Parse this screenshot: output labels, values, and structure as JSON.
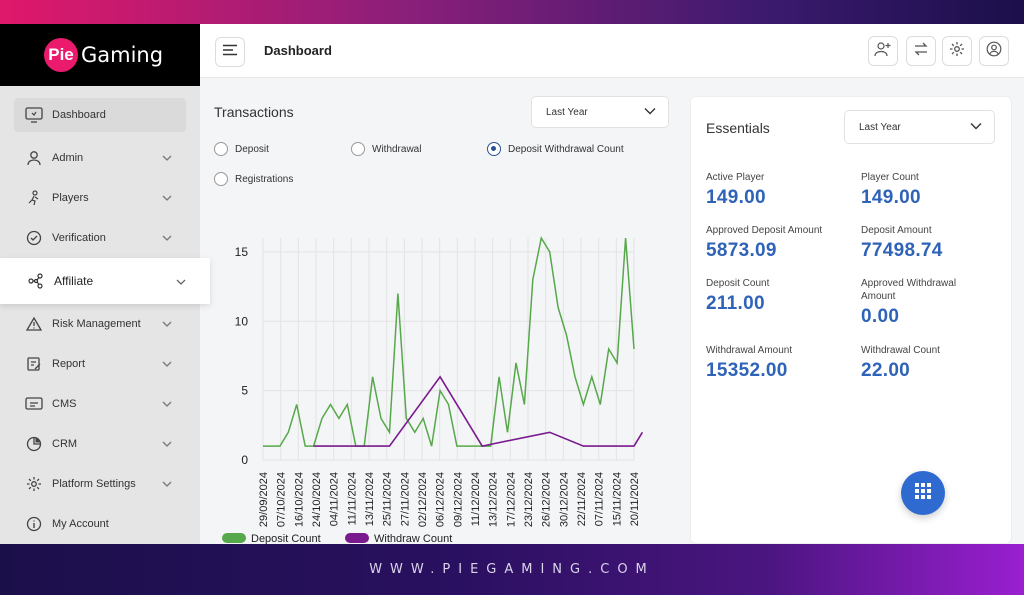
{
  "brand": {
    "logo_mark": "Pie",
    "logo_text": "Gaming",
    "site_url": "WWW.PIEGAMING.COM"
  },
  "colors": {
    "accent": "#2f63b8",
    "brand_pink": "#ea1a6c",
    "deposit": "#57a84a",
    "withdraw": "#7a1a8f"
  },
  "sidebar": {
    "items": [
      {
        "label": "Dashboard",
        "icon": "dashboard-icon",
        "has_chevron": false
      },
      {
        "label": "Admin",
        "icon": "user-icon",
        "has_chevron": true
      },
      {
        "label": "Players",
        "icon": "players-icon",
        "has_chevron": true
      },
      {
        "label": "Verification",
        "icon": "check-circle-icon",
        "has_chevron": true
      },
      {
        "label": "Affiliate",
        "icon": "share-network-icon",
        "has_chevron": true
      },
      {
        "label": "Risk Management",
        "icon": "warning-icon",
        "has_chevron": true
      },
      {
        "label": "Report",
        "icon": "report-icon",
        "has_chevron": true
      },
      {
        "label": "CMS",
        "icon": "cms-icon",
        "has_chevron": true
      },
      {
        "label": "CRM",
        "icon": "pie-chart-icon",
        "has_chevron": true
      },
      {
        "label": "Platform Settings",
        "icon": "gear-icon",
        "has_chevron": true
      },
      {
        "label": "My Account",
        "icon": "info-icon",
        "has_chevron": false
      }
    ]
  },
  "header": {
    "title": "Dashboard"
  },
  "transactions": {
    "title": "Transactions",
    "period": "Last Year",
    "radios": [
      {
        "label": "Deposit",
        "checked": false
      },
      {
        "label": "Withdrawal",
        "checked": false
      },
      {
        "label": "Deposit Withdrawal Count",
        "checked": true
      },
      {
        "label": "Registrations",
        "checked": false
      }
    ]
  },
  "essentials": {
    "title": "Essentials",
    "period": "Last Year",
    "metrics": [
      {
        "label": "Active Player",
        "value": "149.00"
      },
      {
        "label": "Player Count",
        "value": "149.00"
      },
      {
        "label": "Approved Deposit Amount",
        "value": "5873.09"
      },
      {
        "label": "Deposit Amount",
        "value": "77498.74"
      },
      {
        "label": "Deposit Count",
        "value": "211.00"
      },
      {
        "label": "Approved Withdrawal Amount",
        "value": "0.00"
      },
      {
        "label": "Withdrawal Amount",
        "value": "15352.00"
      },
      {
        "label": "Withdrawal Count",
        "value": "22.00"
      }
    ]
  },
  "chart_data": {
    "type": "line",
    "title": "",
    "xlabel": "",
    "ylabel": "",
    "ylim": [
      0,
      16
    ],
    "yticks": [
      0,
      5,
      10,
      15
    ],
    "grid": true,
    "legend_position": "bottom-left",
    "x_tick_labels": [
      "29/09/2024",
      "07/10/2024",
      "16/10/2024",
      "24/10/2024",
      "04/11/2024",
      "11/11/2024",
      "13/11/2024",
      "25/11/2024",
      "27/11/2024",
      "02/12/2024",
      "06/12/2024",
      "09/12/2024",
      "11/12/2024",
      "13/12/2024",
      "17/12/2024",
      "23/12/2024",
      "26/12/2024",
      "30/12/2024",
      "22/11/2024",
      "07/11/2024",
      "15/11/2024",
      "20/11/2024"
    ],
    "series": [
      {
        "name": "Deposit Count",
        "color": "#57a84a",
        "values": [
          1,
          1,
          1,
          2,
          4,
          1,
          1,
          3,
          4,
          3,
          4,
          1,
          1,
          6,
          3,
          2,
          12,
          3,
          2,
          3,
          1,
          5,
          4,
          1,
          1,
          1,
          1,
          1,
          6,
          2,
          7,
          4,
          13,
          16,
          15,
          11,
          9,
          6,
          4,
          6,
          4,
          8,
          7,
          16,
          8
        ]
      },
      {
        "name": "Withdraw Count",
        "color": "#7a1a8f",
        "points": [
          [
            6,
            1
          ],
          [
            15,
            1
          ],
          [
            21,
            6
          ],
          [
            26,
            1
          ],
          [
            34,
            2
          ],
          [
            38,
            1
          ],
          [
            44,
            1
          ],
          [
            45,
            2
          ]
        ]
      }
    ],
    "n_points": 45
  }
}
